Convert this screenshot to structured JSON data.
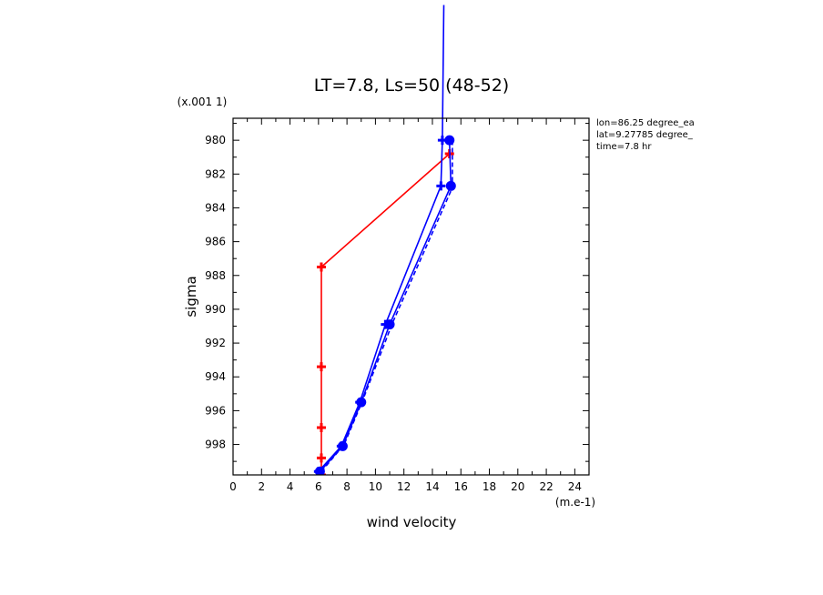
{
  "chart_data": {
    "type": "line",
    "title": "LT=7.8, Ls=50 (48-52)",
    "xlabel": "wind velocity",
    "ylabel": "sigma",
    "x_unit_label": "(m.e-1)",
    "y_unit_label": "(x.001 1)",
    "xlim": [
      0,
      25
    ],
    "ylim": [
      999.8,
      978.7
    ],
    "x_ticks": [
      0,
      2,
      4,
      6,
      8,
      10,
      12,
      14,
      16,
      18,
      20,
      22,
      24
    ],
    "y_ticks": [
      980,
      982,
      984,
      986,
      988,
      990,
      992,
      994,
      996,
      998
    ],
    "info_lines": [
      "lon=86.25 degree_ea",
      "lat=9.27785 degree_",
      "time=7.8 hr"
    ],
    "colors": {
      "red": "#ff0000",
      "blue": "#0000ff"
    },
    "series": [
      {
        "color": "#ff0000",
        "style": "solid",
        "marker": "cross",
        "x": [
          6.2,
          6.2,
          6.2,
          6.2,
          6.2,
          15.2
        ],
        "y": [
          999.8,
          998.8,
          997.0,
          993.4,
          987.5,
          980.8
        ]
      },
      {
        "color": "#0000ff",
        "style": "solid",
        "marker": "cross",
        "x": [
          6.0,
          7.6,
          8.9,
          10.7,
          14.6,
          14.7,
          14.8
        ],
        "y": [
          999.6,
          998.1,
          995.5,
          990.9,
          982.7,
          980.0,
          972.0
        ]
      },
      {
        "color": "#0000ff",
        "style": "solid",
        "marker": "circle",
        "x": [
          6.1,
          7.7,
          9.0,
          11.0,
          15.3,
          15.2
        ],
        "y": [
          999.6,
          998.1,
          995.5,
          990.9,
          982.7,
          980.0
        ]
      },
      {
        "color": "#0000ff",
        "style": "dashed",
        "marker": "none",
        "x": [
          6.2,
          7.8,
          9.1,
          11.2,
          15.4,
          15.4
        ],
        "y": [
          999.6,
          998.0,
          995.4,
          990.8,
          982.8,
          980.0
        ]
      }
    ]
  }
}
